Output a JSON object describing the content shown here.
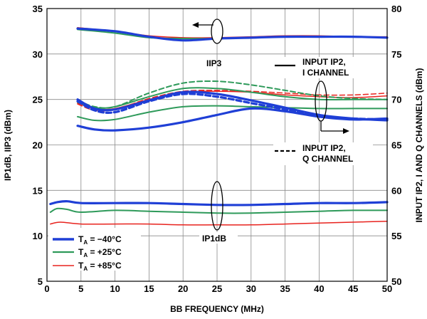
{
  "chart_data": {
    "type": "line",
    "xlabel": "BB FREQUENCY (MHz)",
    "ylabel_left": "IP1dB, IIP3 (dBm)",
    "ylabel_right": "INPUT IP2, I AND Q CHANNELS (dBm)",
    "xlim": [
      0,
      50
    ],
    "ylim_left": [
      5,
      35
    ],
    "ylim_right": [
      50,
      80
    ],
    "x_ticks": [
      "0",
      "5",
      "10",
      "15",
      "20",
      "25",
      "30",
      "35",
      "40",
      "45",
      "50"
    ],
    "y_ticks_left": [
      "5",
      "10",
      "15",
      "20",
      "25",
      "30",
      "35"
    ],
    "y_ticks_right": [
      "50",
      "55",
      "60",
      "65",
      "70",
      "75",
      "80"
    ],
    "grid": true,
    "legend_position": "bottom-left",
    "legend": [
      {
        "name": "T",
        "sub": "A",
        "rest": " = −40°C",
        "color": "#1f3fd6"
      },
      {
        "name": "T",
        "sub": "A",
        "rest": " = +25°C",
        "color": "#2e9a5a"
      },
      {
        "name": "T",
        "sub": "A",
        "rest": " = +85°C",
        "color": "#e8231e"
      }
    ],
    "annotations": {
      "iip3": "IIP3",
      "ip1db": "IP1dB",
      "ip2_i_line1": "INPUT IP2,",
      "ip2_i_line2": "I CHANNEL",
      "ip2_q_line1": "INPUT IP2,",
      "ip2_q_line2": "Q CHANNEL"
    },
    "colors": {
      "minus40": "#1f3fd6",
      "plus25": "#2e9a5a",
      "plus85": "#e8231e"
    },
    "series": [
      {
        "group": "IIP3",
        "temp": "minus40",
        "axis": "left",
        "dash": false,
        "x": [
          4.5,
          10,
          15,
          20,
          25,
          30,
          35,
          40,
          45,
          50
        ],
        "y": [
          32.8,
          32.5,
          31.9,
          31.5,
          31.7,
          31.8,
          31.9,
          31.9,
          31.9,
          31.8
        ]
      },
      {
        "group": "IIP3",
        "temp": "plus25",
        "axis": "left",
        "dash": false,
        "x": [
          4.5,
          10,
          15,
          20,
          25,
          30,
          35,
          40,
          45,
          50
        ],
        "y": [
          32.7,
          32.3,
          31.8,
          31.7,
          31.7,
          31.8,
          31.9,
          31.9,
          31.9,
          31.8
        ]
      },
      {
        "group": "IIP3",
        "temp": "plus85",
        "axis": "left",
        "dash": false,
        "x": [
          4.5,
          10,
          15,
          20,
          25,
          30,
          35,
          40,
          45,
          50
        ],
        "y": [
          32.9,
          32.5,
          32.0,
          31.8,
          31.8,
          31.9,
          32.0,
          32.0,
          31.9,
          31.9
        ]
      },
      {
        "group": "IP2 I",
        "temp": "minus40",
        "axis": "right",
        "dash": false,
        "x": [
          4.5,
          7,
          10,
          15,
          20,
          25,
          30,
          35,
          40,
          45,
          50
        ],
        "y": [
          70.0,
          69.0,
          68.9,
          69.9,
          70.8,
          70.6,
          69.9,
          69.1,
          68.3,
          67.9,
          67.7
        ]
      },
      {
        "group": "IP2 I",
        "temp": "plus25",
        "axis": "right",
        "dash": false,
        "x": [
          4.5,
          7,
          10,
          15,
          20,
          25,
          30,
          35,
          40,
          45,
          50
        ],
        "y": [
          69.7,
          69.1,
          69.2,
          70.3,
          71.2,
          71.2,
          70.8,
          70.3,
          70.0,
          70.0,
          70.0
        ]
      },
      {
        "group": "IP2 I",
        "temp": "plus85",
        "axis": "right",
        "dash": false,
        "x": [
          4.5,
          7,
          10,
          15,
          20,
          25,
          30,
          35,
          40,
          45,
          50
        ],
        "y": [
          69.6,
          69.0,
          69.0,
          70.0,
          70.8,
          70.9,
          70.8,
          70.5,
          70.3,
          70.2,
          70.4
        ]
      },
      {
        "group": "IP2 Q",
        "temp": "minus40",
        "axis": "right",
        "dash": true,
        "x": [
          4.5,
          7,
          10,
          15,
          20,
          25,
          30,
          35,
          40,
          45,
          50
        ],
        "y": [
          69.8,
          68.8,
          68.6,
          69.8,
          70.6,
          70.3,
          69.6,
          68.9,
          68.2,
          67.9,
          67.8
        ]
      },
      {
        "group": "IP2 Q",
        "temp": "plus25",
        "axis": "right",
        "dash": true,
        "x": [
          4.5,
          7,
          10,
          15,
          20,
          25,
          30,
          35,
          40,
          45,
          50
        ],
        "y": [
          69.9,
          69.2,
          69.2,
          70.7,
          71.8,
          72.0,
          71.6,
          71.0,
          70.4,
          70.1,
          70.0
        ]
      },
      {
        "group": "IP2 Q",
        "temp": "plus85",
        "axis": "right",
        "dash": true,
        "x": [
          4.5,
          7,
          10,
          15,
          20,
          25,
          30,
          35,
          40,
          45,
          50
        ],
        "y": [
          69.5,
          68.8,
          68.9,
          70.1,
          70.9,
          71.0,
          70.9,
          70.7,
          70.5,
          70.5,
          70.7
        ]
      },
      {
        "group": "IP1dB",
        "temp": "plus85",
        "axis": "left",
        "dash": false,
        "x": [
          0.5,
          2,
          5,
          10,
          15,
          20,
          25,
          30,
          35,
          40,
          45,
          50
        ],
        "y": [
          11.3,
          11.5,
          11.3,
          11.3,
          11.3,
          11.2,
          11.2,
          11.2,
          11.3,
          11.4,
          11.5,
          11.6
        ]
      },
      {
        "group": "IP1dB",
        "temp": "plus25",
        "axis": "left",
        "dash": false,
        "x": [
          0.5,
          1.5,
          3,
          5,
          10,
          15,
          20,
          25,
          30,
          35,
          40,
          45,
          50
        ],
        "y": [
          12.6,
          13.0,
          12.9,
          12.6,
          12.8,
          12.7,
          12.6,
          12.5,
          12.5,
          12.6,
          12.7,
          12.8,
          12.8
        ]
      },
      {
        "group": "IP1dB",
        "temp": "minus40",
        "axis": "left",
        "dash": false,
        "x": [
          0.5,
          1.5,
          3,
          5,
          10,
          15,
          20,
          25,
          30,
          35,
          40,
          45,
          50
        ],
        "y": [
          13.5,
          13.7,
          13.8,
          13.6,
          13.6,
          13.6,
          13.5,
          13.4,
          13.4,
          13.5,
          13.6,
          13.6,
          13.7
        ]
      },
      {
        "group": "Lower",
        "temp": "plus25",
        "axis": "left",
        "dash": false,
        "x": [
          4.5,
          7,
          10,
          15,
          20,
          25,
          30,
          35,
          40,
          45,
          50
        ],
        "y": [
          23.1,
          22.7,
          22.8,
          23.6,
          24.2,
          24.3,
          24.2,
          24.1,
          24.0,
          24.0,
          24.0
        ]
      },
      {
        "group": "Lower",
        "temp": "minus40",
        "axis": "left",
        "dash": false,
        "x": [
          4.5,
          7,
          10,
          15,
          20,
          25,
          30,
          35,
          40,
          45,
          50
        ],
        "y": [
          22.1,
          21.7,
          21.6,
          21.9,
          22.5,
          23.3,
          24.0,
          23.7,
          23.1,
          22.8,
          22.9
        ]
      }
    ]
  }
}
